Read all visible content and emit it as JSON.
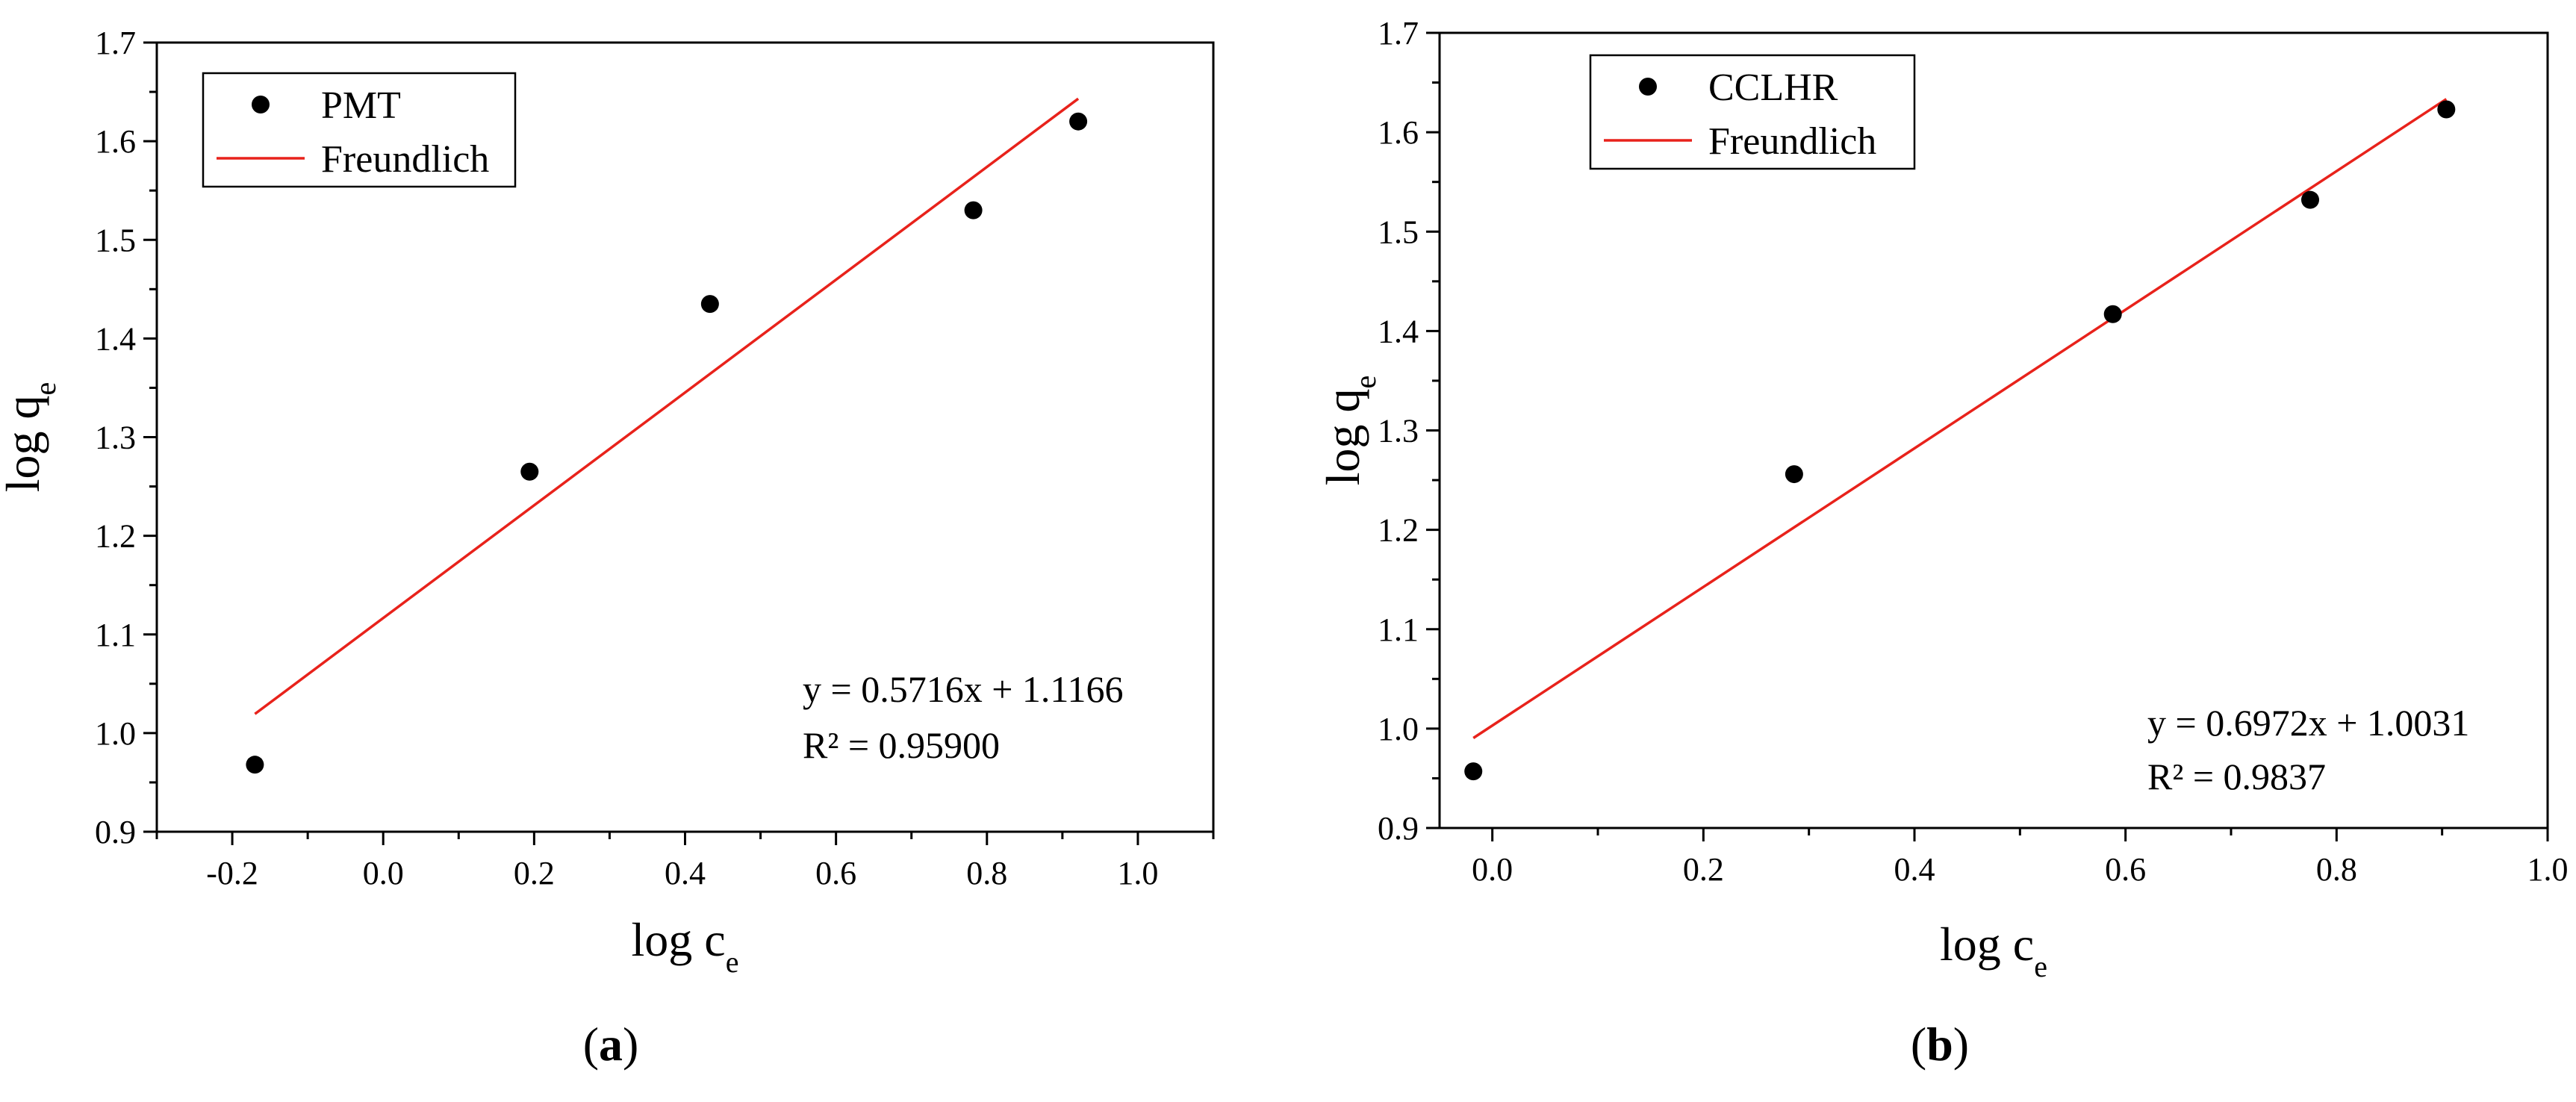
{
  "chart_data": [
    {
      "type": "scatter",
      "panel_label": "a",
      "xlabel": "log c",
      "xlabel_sub": "e",
      "ylabel": "log q",
      "ylabel_sub": "e",
      "xlim": [
        -0.3,
        1.1
      ],
      "ylim": [
        0.9,
        1.7
      ],
      "xticks": [
        -0.2,
        0.0,
        0.2,
        0.4,
        0.6,
        0.8,
        1.0
      ],
      "xtick_labels": [
        "-0.2",
        "0.0",
        "0.2",
        "0.4",
        "0.6",
        "0.8",
        "1.0"
      ],
      "yticks": [
        0.9,
        1.0,
        1.1,
        1.2,
        1.3,
        1.4,
        1.5,
        1.6,
        1.7
      ],
      "ytick_labels": [
        "0.9",
        "1.0",
        "1.1",
        "1.2",
        "1.3",
        "1.4",
        "1.5",
        "1.6",
        "1.7"
      ],
      "legend_position": "top-left",
      "series": [
        {
          "name": "PMT",
          "kind": "scatter",
          "color": "#000000",
          "x": [
            -0.17,
            0.194,
            0.433,
            0.782,
            0.921
          ],
          "y": [
            0.968,
            1.265,
            1.435,
            1.53,
            1.62
          ]
        },
        {
          "name": "Freundlich",
          "kind": "line",
          "color": "#e8221b",
          "x": [
            -0.17,
            0.921
          ],
          "y": [
            1.0194,
            1.6431
          ]
        }
      ],
      "annotation": [
        "y = 0.5716x + 1.1166",
        "R² = 0.95900"
      ]
    },
    {
      "type": "scatter",
      "panel_label": "b",
      "xlabel": "log c",
      "xlabel_sub": "e",
      "ylabel": "log q",
      "ylabel_sub": "e",
      "xlim": [
        -0.05,
        1.0
      ],
      "ylim": [
        0.9,
        1.7
      ],
      "xticks": [
        0.0,
        0.2,
        0.4,
        0.6,
        0.8,
        1.0
      ],
      "xtick_labels": [
        "0.0",
        "0.2",
        "0.4",
        "0.6",
        "0.8",
        "1.0"
      ],
      "yticks": [
        0.9,
        1.0,
        1.1,
        1.2,
        1.3,
        1.4,
        1.5,
        1.6,
        1.7
      ],
      "ytick_labels": [
        "0.9",
        "1.0",
        "1.1",
        "1.2",
        "1.3",
        "1.4",
        "1.5",
        "1.6",
        "1.7"
      ],
      "legend_position": "top-left",
      "series": [
        {
          "name": "CCLHR",
          "kind": "scatter",
          "color": "#000000",
          "x": [
            -0.018,
            0.286,
            0.588,
            0.775,
            0.904
          ],
          "y": [
            0.957,
            1.256,
            1.417,
            1.532,
            1.623
          ]
        },
        {
          "name": "Freundlich",
          "kind": "line",
          "color": "#e8221b",
          "x": [
            -0.018,
            0.904
          ],
          "y": [
            0.9905,
            1.6334
          ]
        }
      ],
      "annotation": [
        "y = 0.6972x + 1.0031",
        "R² = 0.9837"
      ]
    }
  ]
}
